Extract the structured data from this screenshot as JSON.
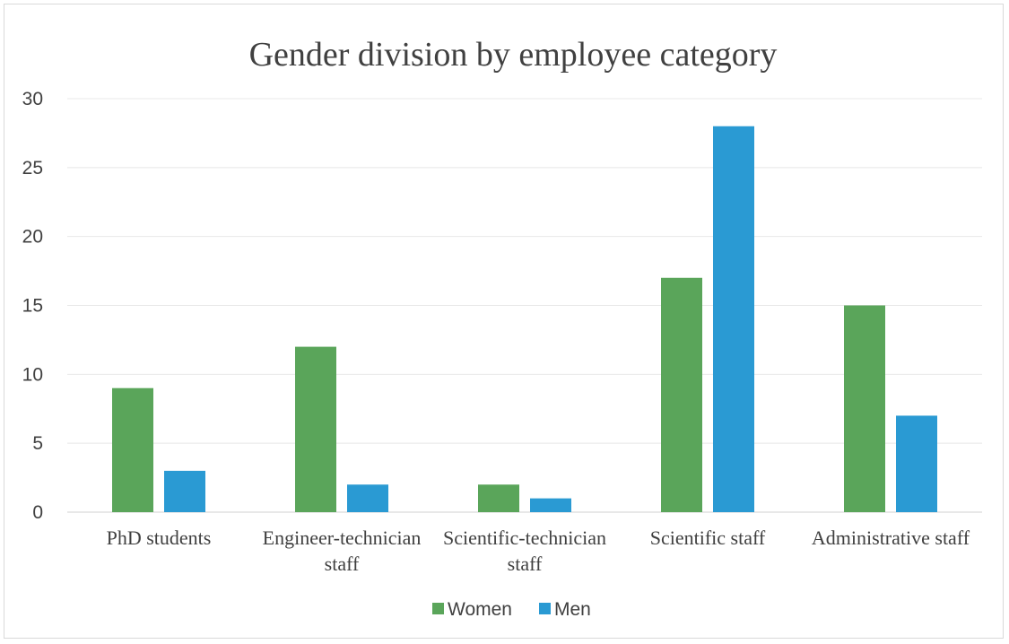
{
  "chart_data": {
    "type": "bar",
    "title": "Gender division by employee category",
    "categories": [
      [
        "PhD students"
      ],
      [
        "Engineer-technician",
        "staff"
      ],
      [
        "Scientific-technician",
        "staff"
      ],
      [
        "Scientific staff"
      ],
      [
        "Administrative staff"
      ]
    ],
    "series": [
      {
        "name": "Women",
        "color": "#5aa55a",
        "values": [
          9,
          12,
          2,
          17,
          15
        ]
      },
      {
        "name": "Men",
        "color": "#2a9ad3",
        "values": [
          3,
          2,
          1,
          28,
          7
        ]
      }
    ],
    "xlabel": "",
    "ylabel": "",
    "ylim": [
      0,
      30
    ],
    "yticks": [
      0,
      5,
      10,
      15,
      20,
      25,
      30
    ],
    "grid": true,
    "legend_position": "bottom"
  }
}
